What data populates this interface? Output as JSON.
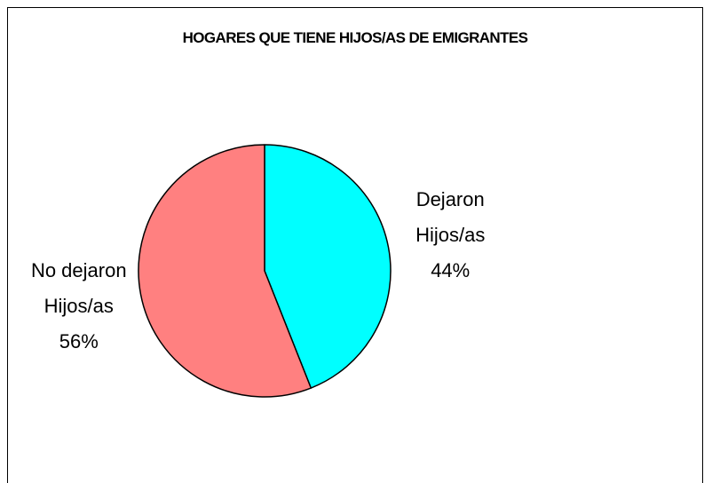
{
  "chart_data": {
    "type": "pie",
    "title": "HOGARES QUE TIENE HIJOS/AS DE EMIGRANTES",
    "categories": [
      "Dejaron Hijos/as",
      "No dejaron Hijos/as"
    ],
    "values": [
      44,
      56
    ],
    "value_labels": [
      "44%",
      "56%"
    ],
    "colors": [
      "#00ffff",
      "#ff8080"
    ]
  }
}
